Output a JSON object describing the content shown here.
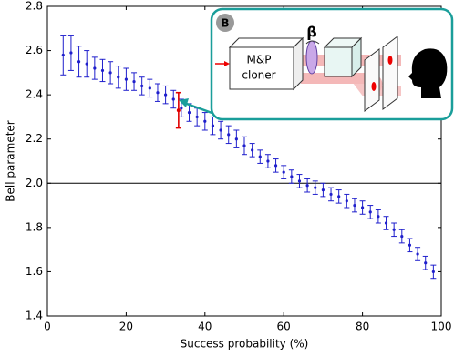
{
  "chart_data": {
    "type": "errorbar-scatter",
    "xlabel": "Success probability (%)",
    "ylabel": "Bell parameter",
    "xlim": [
      0,
      100
    ],
    "ylim": [
      1.4,
      2.8
    ],
    "xticks": [
      0,
      20,
      40,
      60,
      80,
      100
    ],
    "yticks": [
      1.4,
      1.6,
      1.8,
      {
        "value": 2,
        "label": "2.0"
      },
      2.2,
      2.4,
      2.6,
      2.8
    ],
    "hline": 2,
    "series": [
      {
        "color": "#1f1fcc",
        "x": [
          4,
          6,
          8,
          10,
          12,
          14,
          16,
          18,
          20,
          22,
          24,
          26,
          28,
          30,
          32,
          34,
          36,
          38,
          40,
          42,
          44,
          46,
          48,
          50,
          52,
          54,
          56,
          58,
          60,
          62,
          64,
          66,
          68,
          70,
          72,
          74,
          76,
          78,
          80,
          82,
          84,
          86,
          88,
          90,
          92,
          94,
          96,
          98
        ],
        "values": [
          2.58,
          2.59,
          2.55,
          2.54,
          2.52,
          2.51,
          2.5,
          2.48,
          2.47,
          2.46,
          2.44,
          2.43,
          2.41,
          2.4,
          2.38,
          2.34,
          2.32,
          2.3,
          2.28,
          2.26,
          2.24,
          2.22,
          2.2,
          2.17,
          2.15,
          2.12,
          2.1,
          2.08,
          2.05,
          2.03,
          2.01,
          1.99,
          1.98,
          1.97,
          1.95,
          1.94,
          1.92,
          1.9,
          1.89,
          1.87,
          1.85,
          1.82,
          1.79,
          1.76,
          1.72,
          1.68,
          1.64,
          1.6
        ],
        "errors": [
          0.09,
          0.08,
          0.07,
          0.06,
          0.05,
          0.05,
          0.05,
          0.05,
          0.05,
          0.04,
          0.04,
          0.04,
          0.04,
          0.04,
          0.04,
          0.04,
          0.04,
          0.04,
          0.04,
          0.04,
          0.04,
          0.04,
          0.04,
          0.04,
          0.03,
          0.03,
          0.03,
          0.03,
          0.03,
          0.03,
          0.03,
          0.03,
          0.03,
          0.03,
          0.03,
          0.03,
          0.03,
          0.03,
          0.03,
          0.03,
          0.03,
          0.03,
          0.03,
          0.03,
          0.03,
          0.03,
          0.03,
          0.03
        ]
      },
      {
        "color": "#e00000",
        "x": [
          33.3
        ],
        "values": [
          2.33
        ],
        "errors": [
          0.08
        ]
      }
    ],
    "inset": {
      "label": "B",
      "box_line1": "M&P",
      "box_line2": "cloner",
      "symbol": "β"
    }
  }
}
